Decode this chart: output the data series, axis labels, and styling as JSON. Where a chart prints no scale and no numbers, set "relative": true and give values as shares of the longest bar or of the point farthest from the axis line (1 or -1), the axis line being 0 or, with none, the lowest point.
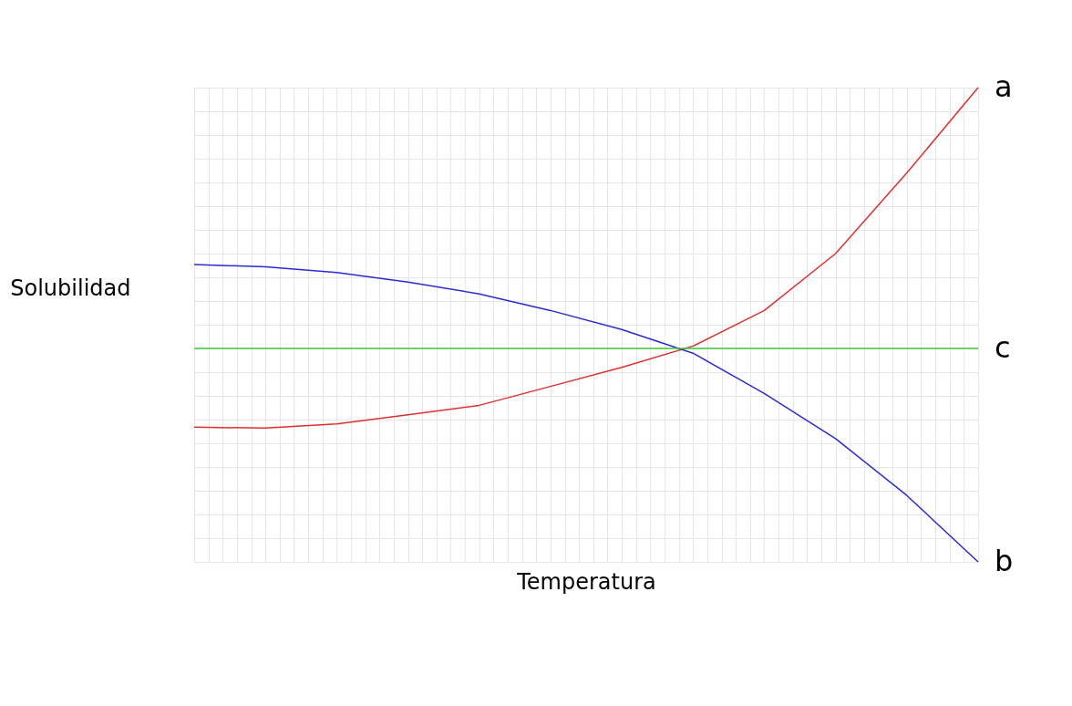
{
  "chart_data": {
    "type": "line",
    "relative": true,
    "xlabel": "Temperatura",
    "ylabel": "Solubilidad",
    "categories": [
      null,
      null,
      null,
      null,
      null,
      null,
      null,
      null,
      null,
      null,
      null,
      null
    ],
    "series": [
      {
        "name": "a",
        "color": "#e0302c",
        "values": [
          0.284,
          0.282,
          0.291,
          0.31,
          0.33,
          0.37,
          0.41,
          0.455,
          0.53,
          0.65,
          0.82,
          1
        ]
      },
      {
        "name": "b",
        "color": "#2b2bd6",
        "values": [
          0.627,
          0.622,
          0.61,
          0.59,
          0.565,
          0.53,
          0.49,
          0.44,
          0.355,
          0.26,
          0.14,
          0
        ]
      },
      {
        "name": "c",
        "color": "#3cc83c",
        "values": [
          0.45,
          0.45,
          0.45,
          0.45,
          0.45,
          0.45,
          0.45,
          0.45,
          0.45,
          0.45,
          0.45,
          0.45
        ]
      }
    ],
    "grid": true,
    "legend": false,
    "marker": "none",
    "line_style": "solid"
  }
}
